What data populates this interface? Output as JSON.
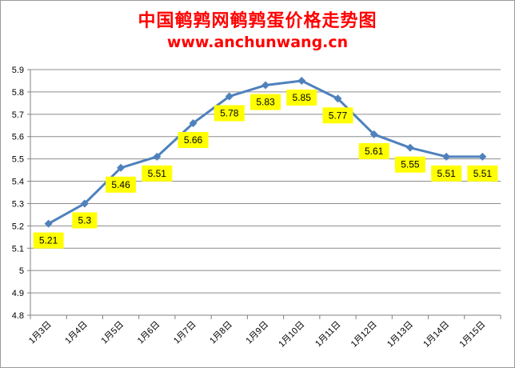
{
  "chart_data": {
    "type": "line",
    "title": "中国鹌鹑网鹌鹑蛋价格走势图",
    "subtitle": "www.anchunwang.cn",
    "xlabel": "",
    "ylabel": "",
    "categories": [
      "1月3日",
      "1月4日",
      "1月5日",
      "1月6日",
      "1月7日",
      "1月8日",
      "1月9日",
      "1月10日",
      "1月11日",
      "1月12日",
      "1月13日",
      "1月14日",
      "1月15日"
    ],
    "values": [
      5.21,
      5.3,
      5.46,
      5.51,
      5.66,
      5.78,
      5.83,
      5.85,
      5.77,
      5.61,
      5.55,
      5.51,
      5.51
    ],
    "data_labels": [
      "5.21",
      "5.3",
      "5.46",
      "5.51",
      "5.66",
      "5.78",
      "5.83",
      "5.85",
      "5.77",
      "5.61",
      "5.55",
      "5.51",
      "5.51"
    ],
    "ylim": [
      4.8,
      5.9
    ],
    "yticks": [
      "5.9",
      "5.8",
      "5.7",
      "5.6",
      "5.5",
      "5.4",
      "5.3",
      "5.2",
      "5.1",
      "5",
      "4.9",
      "4.8"
    ],
    "grid": true,
    "legend": "none",
    "colors": {
      "title": "#ff0000",
      "line": "#4f81bd",
      "marker": "#4f81bd",
      "label_bg": "#ffff00",
      "grid": "#8c8c8c"
    }
  }
}
